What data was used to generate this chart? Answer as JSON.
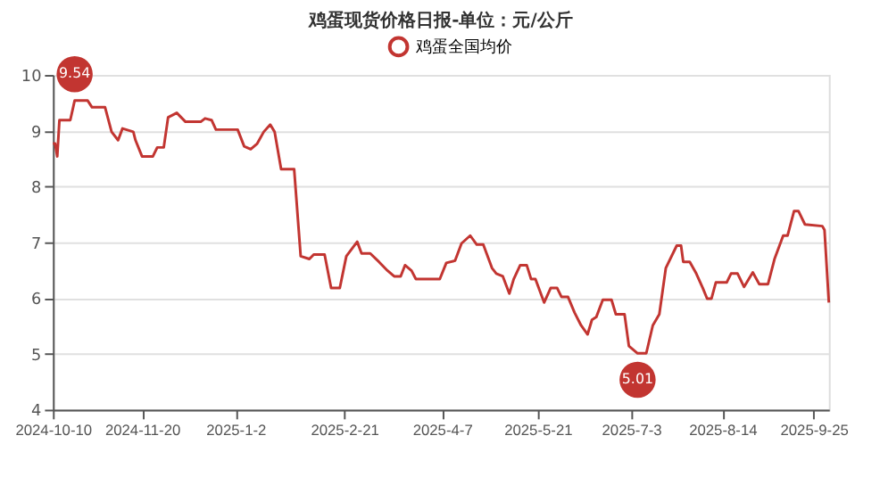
{
  "chart_data": {
    "type": "line",
    "title": "鸡蛋现货价格日报-单位：元/公斤",
    "x": [
      "2024-10-10",
      "2024-10-11",
      "2024-10-12",
      "2024-10-13",
      "2024-10-18",
      "2024-10-20",
      "2024-10-26",
      "2024-10-28",
      "2024-11-03",
      "2024-11-06",
      "2024-11-09",
      "2024-11-11",
      "2024-11-16",
      "2024-11-17",
      "2024-11-20",
      "2024-11-25",
      "2024-11-27",
      "2024-11-30",
      "2024-12-02",
      "2024-12-06",
      "2024-12-10",
      "2024-12-17",
      "2024-12-19",
      "2024-12-22",
      "2024-12-24",
      "2025-01-03",
      "2025-01-06",
      "2025-01-09",
      "2025-01-12",
      "2025-01-15",
      "2025-01-18",
      "2025-01-20",
      "2025-01-23",
      "2025-01-29",
      "2025-02-01",
      "2025-02-05",
      "2025-02-07",
      "2025-02-12",
      "2025-02-15",
      "2025-02-19",
      "2025-02-22",
      "2025-02-27",
      "2025-03-01",
      "2025-03-05",
      "2025-03-09",
      "2025-03-13",
      "2025-03-16",
      "2025-03-19",
      "2025-03-21",
      "2025-03-24",
      "2025-03-26",
      "2025-04-06",
      "2025-04-09",
      "2025-04-13",
      "2025-04-16",
      "2025-04-20",
      "2025-04-23",
      "2025-04-26",
      "2025-04-30",
      "2025-05-02",
      "2025-05-05",
      "2025-05-08",
      "2025-05-10",
      "2025-05-13",
      "2025-05-16",
      "2025-05-18",
      "2025-05-20",
      "2025-05-24",
      "2025-05-27",
      "2025-05-30",
      "2025-06-01",
      "2025-06-04",
      "2025-06-07",
      "2025-06-10",
      "2025-06-13",
      "2025-06-15",
      "2025-06-17",
      "2025-06-20",
      "2025-06-24",
      "2025-06-26",
      "2025-06-30",
      "2025-07-02",
      "2025-07-06",
      "2025-07-10",
      "2025-07-13",
      "2025-07-16",
      "2025-07-19",
      "2025-07-24",
      "2025-07-26",
      "2025-07-27",
      "2025-07-30",
      "2025-08-02",
      "2025-08-05",
      "2025-08-07",
      "2025-08-09",
      "2025-08-11",
      "2025-08-16",
      "2025-08-18",
      "2025-08-21",
      "2025-08-24",
      "2025-08-28",
      "2025-08-31",
      "2025-09-04",
      "2025-09-07",
      "2025-09-11",
      "2025-09-13",
      "2025-09-16",
      "2025-09-18",
      "2025-09-21",
      "2025-09-29",
      "2025-09-30",
      "2025-10-02"
    ],
    "series": [
      {
        "name": "鸡蛋全国均价",
        "color": "#c23531",
        "values": [
          8.77,
          8.77,
          8.54,
          9.19,
          9.19,
          9.54,
          9.54,
          9.42,
          9.42,
          8.98,
          8.83,
          9.04,
          8.98,
          8.83,
          8.54,
          8.54,
          8.7,
          8.7,
          9.24,
          9.32,
          9.16,
          9.16,
          9.22,
          9.19,
          9.02,
          9.02,
          8.72,
          8.67,
          8.77,
          8.98,
          9.11,
          8.98,
          8.31,
          8.31,
          6.75,
          6.7,
          6.78,
          6.78,
          6.18,
          6.18,
          6.75,
          7.01,
          6.8,
          6.8,
          6.65,
          6.49,
          6.39,
          6.39,
          6.59,
          6.49,
          6.34,
          6.34,
          6.63,
          6.67,
          6.98,
          7.12,
          6.96,
          6.96,
          6.54,
          6.44,
          6.39,
          6.08,
          6.34,
          6.59,
          6.59,
          6.34,
          6.34,
          5.92,
          6.18,
          6.18,
          6.02,
          6.02,
          5.74,
          5.51,
          5.35,
          5.61,
          5.66,
          5.97,
          5.97,
          5.71,
          5.71,
          5.14,
          5.01,
          5.01,
          5.51,
          5.71,
          6.54,
          6.94,
          6.94,
          6.65,
          6.65,
          6.44,
          6.18,
          5.99,
          5.99,
          6.28,
          6.28,
          6.44,
          6.44,
          6.2,
          6.46,
          6.25,
          6.25,
          6.7,
          7.12,
          7.12,
          7.56,
          7.56,
          7.32,
          7.29,
          7.22,
          5.92
        ]
      }
    ],
    "annotations": [
      {
        "text": "9.54",
        "x": "2024-10-20",
        "y": 9.54
      },
      {
        "text": "5.01",
        "x": "2025-07-06",
        "y": 5.01
      }
    ],
    "xlim": [
      "2024-10-10",
      "2025-10-02"
    ],
    "xticks": [
      {
        "value": "2024-10-10",
        "label": "2024-10-10"
      },
      {
        "value": "2024-11-20",
        "label": "2024-11-20"
      },
      {
        "value": "2025-01-02",
        "label": "2025-1-2"
      },
      {
        "value": "2025-02-21",
        "label": "2025-2-21"
      },
      {
        "value": "2025-04-07",
        "label": "2025-4-7"
      },
      {
        "value": "2025-05-21",
        "label": "2025-5-21"
      },
      {
        "value": "2025-07-03",
        "label": "2025-7-3"
      },
      {
        "value": "2025-08-14",
        "label": "2025-8-14"
      },
      {
        "value": "2025-09-25",
        "label": "2025-9-25"
      }
    ],
    "ylim": [
      4,
      10
    ],
    "yticks": [
      4,
      5,
      6,
      7,
      8,
      9,
      10
    ],
    "grid": "y",
    "legend": "top",
    "marker": "none",
    "line_style": "solid"
  }
}
